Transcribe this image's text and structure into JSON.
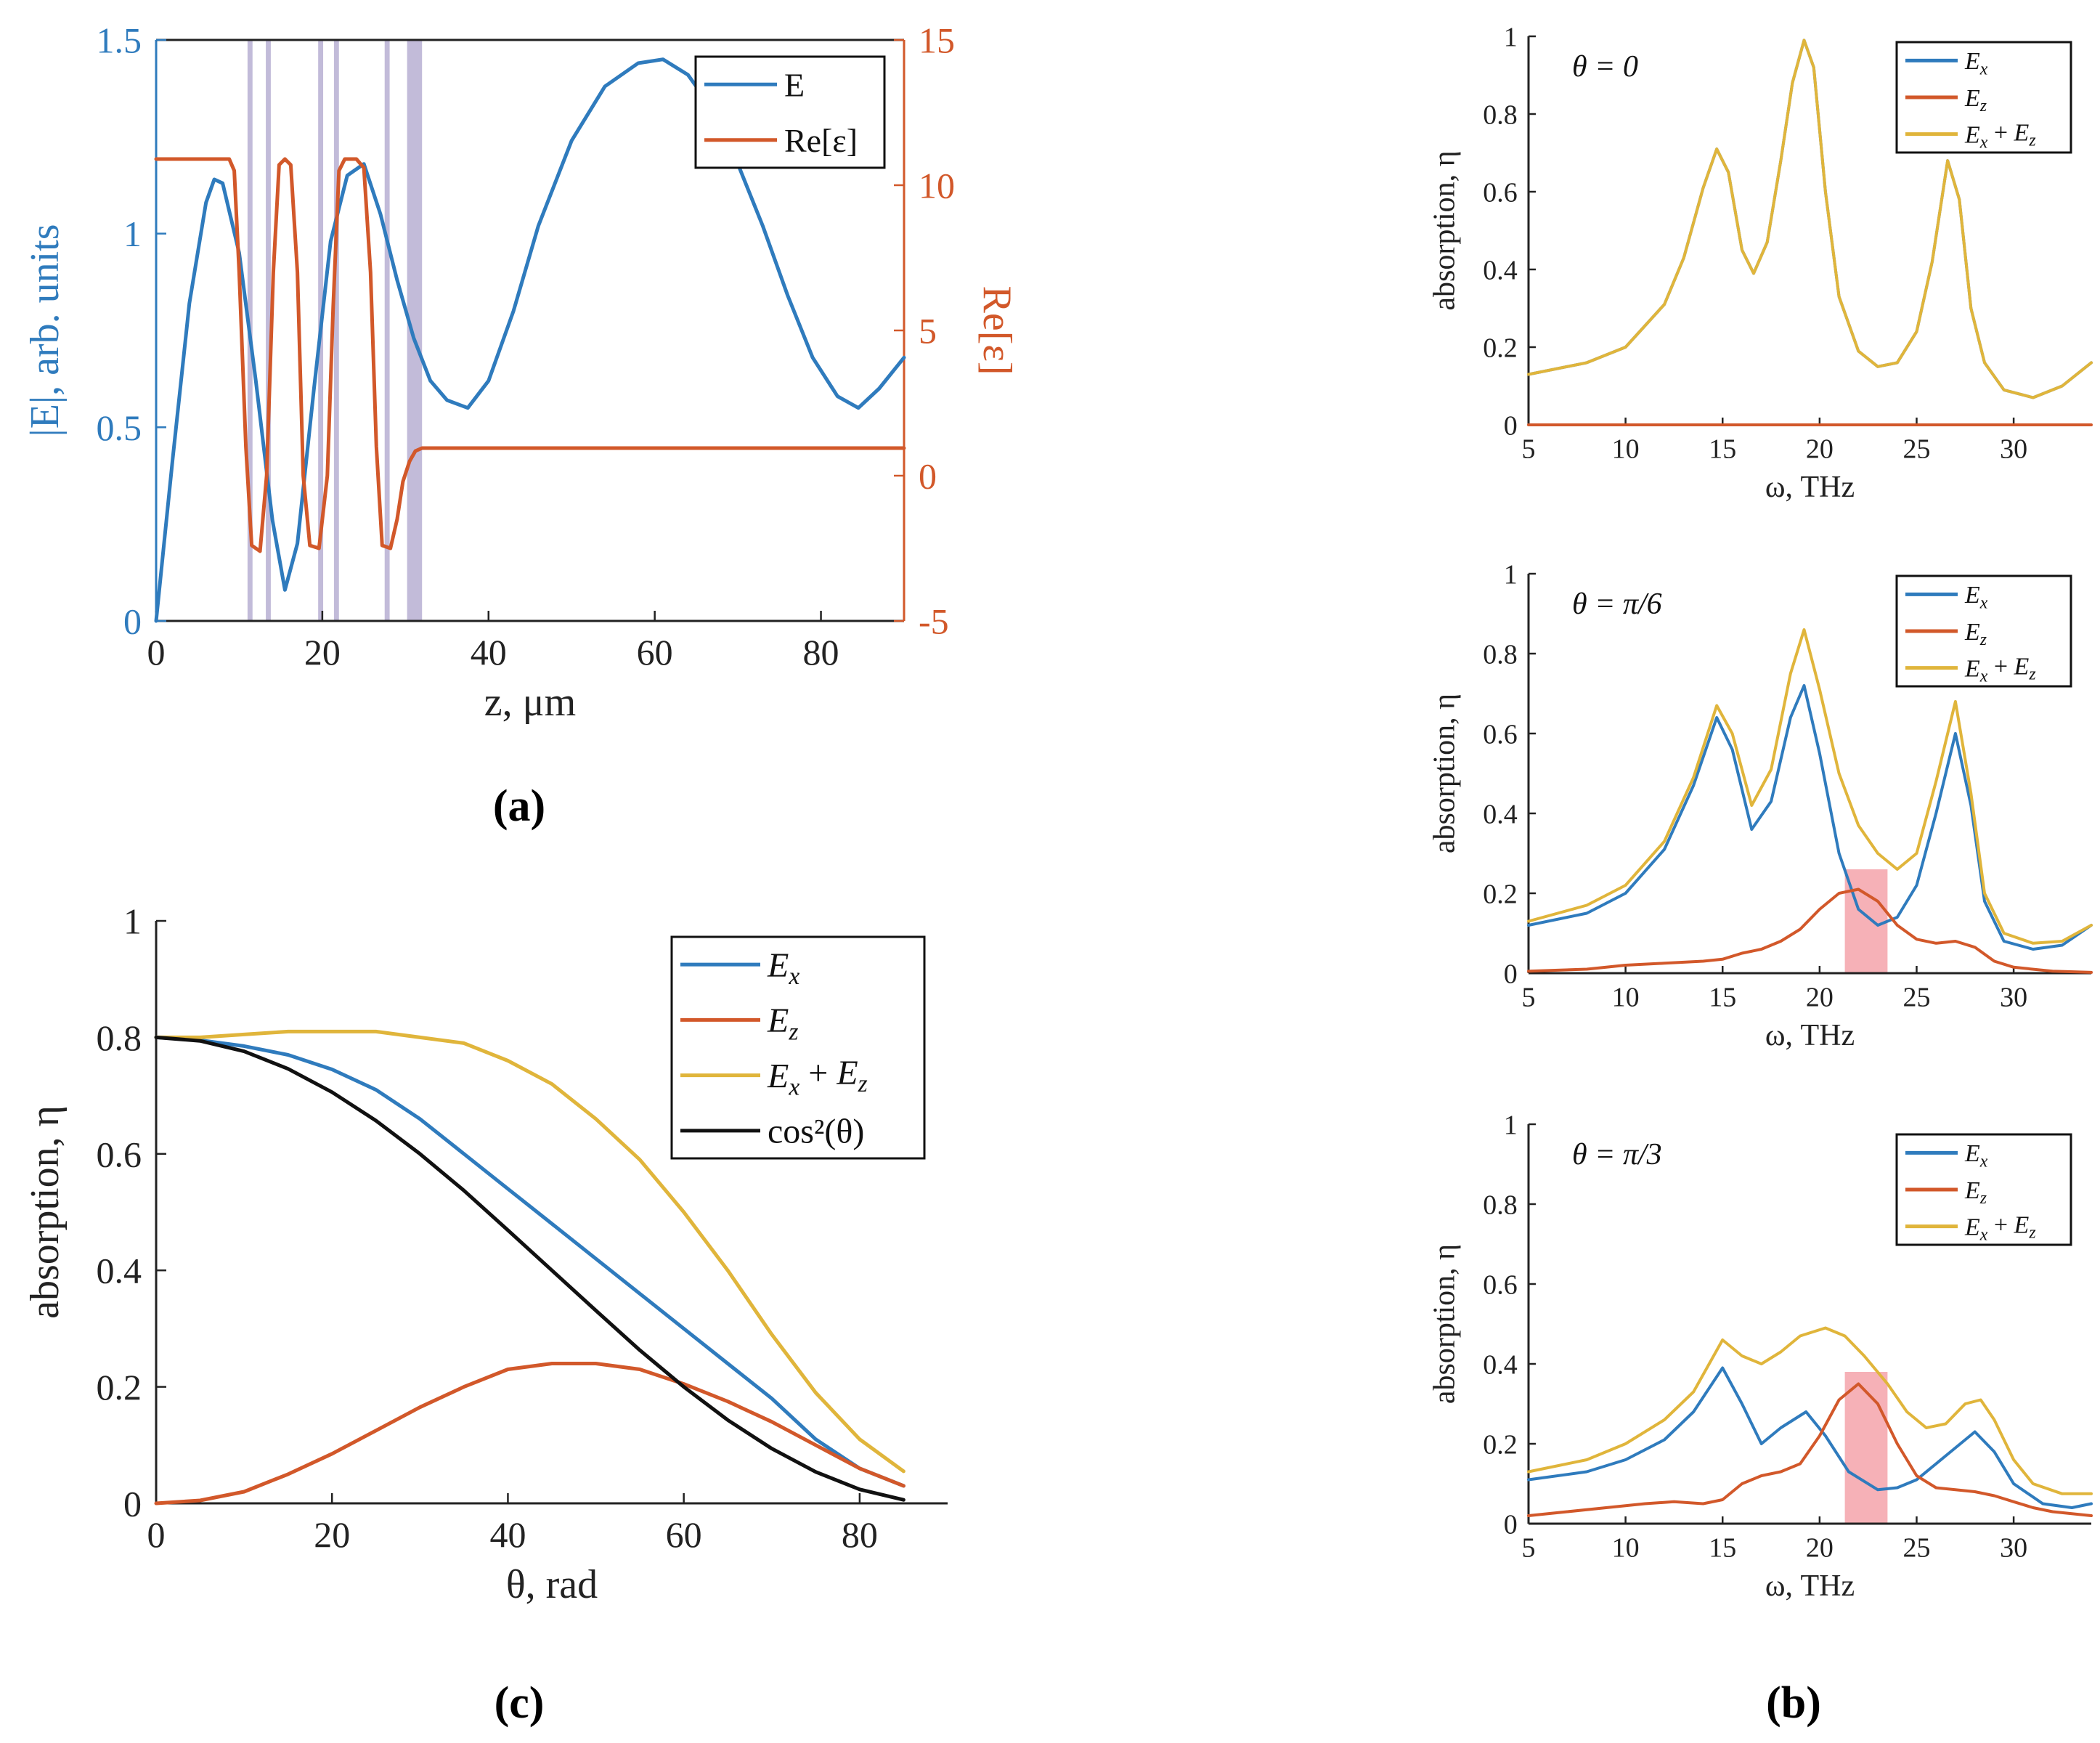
{
  "colors": {
    "blue": "#2f7bbd",
    "orange": "#d2582a",
    "yellow": "#e0b53b",
    "black": "#111111",
    "shade": "#b3aad0",
    "highlight": "#f4a3aa",
    "axis": "#222222"
  },
  "panels": {
    "a": {
      "caption": "(a)"
    },
    "b": {
      "caption": "(b)"
    },
    "c": {
      "caption": "(c)"
    }
  },
  "chart_data": [
    {
      "id": "a",
      "type": "line",
      "title": "",
      "xlabel": "z, μm",
      "ylabel": "|E|, arb. units",
      "ylabel_right": "Re[ε]",
      "xlim": [
        0,
        90
      ],
      "ylim": [
        0,
        1.5
      ],
      "ylim_right": [
        -5,
        15
      ],
      "xticks": [
        "0",
        "20",
        "40",
        "60",
        "80"
      ],
      "yticks": [
        "0",
        "0.5",
        "1",
        "1.5"
      ],
      "yticks_right": [
        "-5",
        "0",
        "5",
        "10",
        "15"
      ],
      "legend": {
        "position": "top-right",
        "entries": [
          "E",
          "Re[ε]"
        ]
      },
      "shaded_bands": [
        [
          11,
          11.6
        ],
        [
          13.2,
          13.8
        ],
        [
          19.5,
          20.1
        ],
        [
          21.4,
          22
        ],
        [
          27.5,
          28.1
        ],
        [
          30.2,
          32
        ]
      ],
      "series": [
        {
          "name": "E",
          "axis": "left",
          "color": "blue",
          "x": [
            0,
            2,
            4,
            6,
            7,
            8,
            10,
            12,
            14,
            15.5,
            17,
            19,
            21,
            23,
            25,
            27,
            29,
            31,
            33,
            35,
            37.5,
            40,
            43,
            46,
            50,
            54,
            58,
            61,
            64,
            67,
            70,
            73,
            76,
            79,
            82,
            84.5,
            87,
            90
          ],
          "y": [
            0,
            0.42,
            0.82,
            1.08,
            1.14,
            1.13,
            0.95,
            0.62,
            0.26,
            0.08,
            0.2,
            0.6,
            0.98,
            1.15,
            1.18,
            1.05,
            0.88,
            0.73,
            0.62,
            0.57,
            0.55,
            0.62,
            0.8,
            1.02,
            1.24,
            1.38,
            1.44,
            1.45,
            1.41,
            1.32,
            1.18,
            1.02,
            0.84,
            0.68,
            0.58,
            0.55,
            0.6,
            0.68
          ]
        },
        {
          "name": "Re[ε]",
          "axis": "right",
          "color": "orange",
          "x": [
            0,
            8.8,
            9.4,
            10,
            10.8,
            11.5,
            12.5,
            13.3,
            14.1,
            14.8,
            15.5,
            16.2,
            17,
            17.7,
            18.5,
            19.6,
            20.6,
            21.3,
            22,
            22.7,
            23.4,
            24.1,
            25,
            25.8,
            26.5,
            27.2,
            28.2,
            29,
            29.7,
            30.5,
            31.2,
            32,
            90
          ],
          "y": [
            10.9,
            10.9,
            10.5,
            7,
            1,
            -2.4,
            -2.6,
            0,
            7,
            10.7,
            10.9,
            10.7,
            7,
            0,
            -2.4,
            -2.5,
            0,
            5.8,
            10.5,
            10.9,
            10.9,
            10.9,
            10.6,
            7,
            1,
            -2.4,
            -2.5,
            -1.5,
            -0.2,
            0.5,
            0.85,
            0.95,
            0.95
          ]
        }
      ]
    },
    {
      "id": "b1",
      "type": "line",
      "title": "θ = 0",
      "xlabel": "ω,  THz",
      "ylabel": "absorption, η",
      "xlim": [
        5,
        34
      ],
      "ylim": [
        0,
        1
      ],
      "xticks": [
        "5",
        "10",
        "15",
        "20",
        "25",
        "30"
      ],
      "yticks": [
        "0",
        "0.2",
        "0.4",
        "0.6",
        "0.8",
        "1"
      ],
      "legend": {
        "position": "top-right",
        "entries": [
          "Ex",
          "Ez",
          "Ex + Ez"
        ]
      },
      "series": [
        {
          "name": "Ex",
          "color": "blue",
          "x": [
            5,
            8,
            10,
            12,
            13,
            14,
            14.7,
            15.3,
            16,
            16.6,
            17.3,
            18,
            18.6,
            19.2,
            19.7,
            20.3,
            21,
            22,
            23,
            24,
            25,
            25.8,
            26.6,
            27.2,
            27.8,
            28.5,
            29.5,
            31,
            32.5,
            34
          ],
          "y": [
            0.13,
            0.16,
            0.2,
            0.31,
            0.43,
            0.61,
            0.71,
            0.65,
            0.45,
            0.39,
            0.47,
            0.68,
            0.88,
            0.99,
            0.92,
            0.6,
            0.33,
            0.19,
            0.15,
            0.16,
            0.24,
            0.42,
            0.68,
            0.58,
            0.3,
            0.16,
            0.09,
            0.07,
            0.1,
            0.16
          ]
        },
        {
          "name": "Ez",
          "color": "orange",
          "x": [
            5,
            34
          ],
          "y": [
            0,
            0
          ]
        },
        {
          "name": "Ex + Ez",
          "color": "yellow",
          "x": [
            5,
            8,
            10,
            12,
            13,
            14,
            14.7,
            15.3,
            16,
            16.6,
            17.3,
            18,
            18.6,
            19.2,
            19.7,
            20.3,
            21,
            22,
            23,
            24,
            25,
            25.8,
            26.6,
            27.2,
            27.8,
            28.5,
            29.5,
            31,
            32.5,
            34
          ],
          "y": [
            0.13,
            0.16,
            0.2,
            0.31,
            0.43,
            0.61,
            0.71,
            0.65,
            0.45,
            0.39,
            0.47,
            0.68,
            0.88,
            0.99,
            0.92,
            0.6,
            0.33,
            0.19,
            0.15,
            0.16,
            0.24,
            0.42,
            0.68,
            0.58,
            0.3,
            0.16,
            0.09,
            0.07,
            0.1,
            0.16
          ]
        }
      ]
    },
    {
      "id": "b2",
      "type": "line",
      "title": "θ = π/6",
      "xlabel": "ω,  THz",
      "ylabel": "absorption, η",
      "xlim": [
        5,
        34
      ],
      "ylim": [
        0,
        1
      ],
      "xticks": [
        "5",
        "10",
        "15",
        "20",
        "25",
        "30"
      ],
      "yticks": [
        "0",
        "0.2",
        "0.4",
        "0.6",
        "0.8",
        "1"
      ],
      "legend": {
        "position": "top-right",
        "entries": [
          "Ex",
          "Ez",
          "Ex + Ez"
        ]
      },
      "highlight": {
        "x": [
          21.3,
          23.5
        ],
        "y": [
          0,
          0.26
        ]
      },
      "series": [
        {
          "name": "Ex",
          "color": "blue",
          "x": [
            5,
            8,
            10,
            12,
            13.5,
            14.7,
            15.5,
            16.5,
            17.5,
            18.5,
            19.2,
            20,
            21,
            22,
            23,
            24,
            25,
            26,
            27,
            27.8,
            28.5,
            29.5,
            31,
            32.5,
            34
          ],
          "y": [
            0.12,
            0.15,
            0.2,
            0.31,
            0.47,
            0.64,
            0.56,
            0.36,
            0.43,
            0.64,
            0.72,
            0.55,
            0.3,
            0.16,
            0.12,
            0.14,
            0.22,
            0.4,
            0.6,
            0.42,
            0.18,
            0.08,
            0.06,
            0.07,
            0.12
          ]
        },
        {
          "name": "Ez",
          "color": "orange",
          "x": [
            5,
            8,
            10,
            12,
            14,
            15,
            16,
            17,
            18,
            19,
            20,
            21,
            22,
            23,
            24,
            25,
            26,
            27,
            28,
            29,
            30,
            32,
            34
          ],
          "y": [
            0.005,
            0.01,
            0.02,
            0.025,
            0.03,
            0.035,
            0.05,
            0.06,
            0.08,
            0.11,
            0.16,
            0.2,
            0.21,
            0.18,
            0.12,
            0.085,
            0.075,
            0.08,
            0.065,
            0.03,
            0.015,
            0.005,
            0.002
          ]
        },
        {
          "name": "Ex + Ez",
          "color": "yellow",
          "x": [
            5,
            8,
            10,
            12,
            13.5,
            14.7,
            15.5,
            16.5,
            17.5,
            18.5,
            19.2,
            20,
            21,
            22,
            23,
            24,
            25,
            26,
            27,
            27.8,
            28.5,
            29.5,
            31,
            32.5,
            34
          ],
          "y": [
            0.13,
            0.17,
            0.22,
            0.33,
            0.49,
            0.67,
            0.6,
            0.42,
            0.51,
            0.75,
            0.86,
            0.71,
            0.5,
            0.37,
            0.3,
            0.26,
            0.3,
            0.48,
            0.68,
            0.45,
            0.2,
            0.1,
            0.075,
            0.08,
            0.12
          ]
        }
      ]
    },
    {
      "id": "b3",
      "type": "line",
      "title": "θ = π/3",
      "xlabel": "ω,  THz",
      "ylabel": "absorption, η",
      "xlim": [
        5,
        34
      ],
      "ylim": [
        0,
        1
      ],
      "xticks": [
        "5",
        "10",
        "15",
        "20",
        "25",
        "30"
      ],
      "yticks": [
        "0",
        "0.2",
        "0.4",
        "0.6",
        "0.8",
        "1"
      ],
      "legend": {
        "position": "top-right",
        "entries": [
          "Ex",
          "Ez",
          "Ex + Ez"
        ]
      },
      "highlight": {
        "x": [
          21.3,
          23.5
        ],
        "y": [
          0,
          0.38
        ]
      },
      "series": [
        {
          "name": "Ex",
          "color": "blue",
          "x": [
            5,
            8,
            10,
            12,
            13.5,
            15,
            16,
            17,
            18,
            19.3,
            20.3,
            21.5,
            23,
            24,
            25,
            26.5,
            28,
            29,
            30,
            31.5,
            33,
            34
          ],
          "y": [
            0.11,
            0.13,
            0.16,
            0.21,
            0.28,
            0.39,
            0.3,
            0.2,
            0.24,
            0.28,
            0.22,
            0.13,
            0.085,
            0.09,
            0.11,
            0.17,
            0.23,
            0.18,
            0.1,
            0.05,
            0.04,
            0.05
          ]
        },
        {
          "name": "Ez",
          "color": "orange",
          "x": [
            5,
            7,
            9,
            11,
            12.5,
            14,
            15,
            16,
            17,
            18,
            19,
            20,
            21,
            22,
            23,
            24,
            25,
            26,
            27,
            28,
            29,
            30,
            31,
            32,
            34
          ],
          "y": [
            0.02,
            0.03,
            0.04,
            0.05,
            0.055,
            0.05,
            0.06,
            0.1,
            0.12,
            0.13,
            0.15,
            0.22,
            0.31,
            0.35,
            0.3,
            0.2,
            0.12,
            0.09,
            0.085,
            0.08,
            0.07,
            0.055,
            0.04,
            0.03,
            0.02
          ]
        },
        {
          "name": "Ex + Ez",
          "color": "yellow",
          "x": [
            5,
            8,
            10,
            12,
            13.5,
            15,
            16,
            17,
            18,
            19,
            20.3,
            21.3,
            22.3,
            23.5,
            24.5,
            25.5,
            26.5,
            27.5,
            28.3,
            29,
            30,
            31,
            32.5,
            34
          ],
          "y": [
            0.13,
            0.16,
            0.2,
            0.26,
            0.33,
            0.46,
            0.42,
            0.4,
            0.43,
            0.47,
            0.49,
            0.47,
            0.42,
            0.35,
            0.28,
            0.24,
            0.25,
            0.3,
            0.31,
            0.26,
            0.16,
            0.1,
            0.075,
            0.075
          ]
        }
      ]
    },
    {
      "id": "c",
      "type": "line",
      "title": "",
      "xlabel": "θ, rad",
      "ylabel": "absorption, η",
      "xlim": [
        0,
        90
      ],
      "ylim": [
        0,
        1
      ],
      "xticks": [
        "0",
        "20",
        "40",
        "60",
        "80"
      ],
      "yticks": [
        "0",
        "0.2",
        "0.4",
        "0.6",
        "0.8",
        "1"
      ],
      "legend": {
        "position": "top-right",
        "entries": [
          "Ex",
          "Ez",
          "Ex + Ez",
          "cos²(θ)"
        ]
      },
      "series": [
        {
          "name": "Ex",
          "color": "blue",
          "x": [
            0,
            5,
            10,
            15,
            20,
            25,
            30,
            35,
            40,
            45,
            50,
            55,
            60,
            65,
            70,
            75,
            80,
            85
          ],
          "y": [
            0.8,
            0.795,
            0.785,
            0.77,
            0.745,
            0.71,
            0.66,
            0.6,
            0.54,
            0.48,
            0.42,
            0.36,
            0.3,
            0.24,
            0.18,
            0.11,
            0.06,
            0.03
          ]
        },
        {
          "name": "Ez",
          "color": "orange",
          "x": [
            0,
            5,
            10,
            15,
            20,
            25,
            30,
            35,
            40,
            45,
            50,
            55,
            60,
            65,
            70,
            75,
            80,
            85
          ],
          "y": [
            0,
            0.005,
            0.02,
            0.05,
            0.085,
            0.125,
            0.165,
            0.2,
            0.23,
            0.24,
            0.24,
            0.23,
            0.205,
            0.175,
            0.14,
            0.1,
            0.06,
            0.03
          ]
        },
        {
          "name": "Ex + Ez",
          "color": "yellow",
          "x": [
            0,
            5,
            10,
            15,
            20,
            25,
            30,
            35,
            40,
            45,
            50,
            55,
            60,
            65,
            70,
            75,
            80,
            85
          ],
          "y": [
            0.8,
            0.8,
            0.805,
            0.81,
            0.81,
            0.81,
            0.8,
            0.79,
            0.76,
            0.72,
            0.66,
            0.59,
            0.5,
            0.4,
            0.29,
            0.19,
            0.11,
            0.055
          ]
        },
        {
          "name": "cos²(θ)",
          "color": "black",
          "x": [
            0,
            5,
            10,
            15,
            20,
            25,
            30,
            35,
            40,
            45,
            50,
            55,
            60,
            65,
            70,
            75,
            80,
            85
          ],
          "y": [
            0.8,
            0.794,
            0.776,
            0.746,
            0.706,
            0.657,
            0.6,
            0.537,
            0.469,
            0.4,
            0.331,
            0.263,
            0.2,
            0.143,
            0.094,
            0.054,
            0.024,
            0.006
          ]
        }
      ]
    }
  ]
}
